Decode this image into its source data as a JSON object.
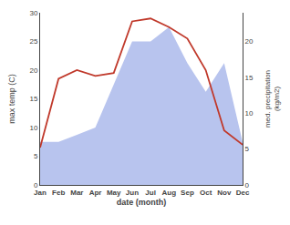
{
  "chart_data": {
    "type": "line",
    "categories": [
      "Jan",
      "Feb",
      "Mar",
      "Apr",
      "May",
      "Jun",
      "Jul",
      "Aug",
      "Sep",
      "Oct",
      "Nov",
      "Dec"
    ],
    "series": [
      {
        "type": "area",
        "axis": "y2",
        "color": "#b8c4ee",
        "values": [
          6.0,
          6.0,
          7.0,
          8.0,
          14.0,
          20.0,
          20.0,
          22.0,
          17.0,
          13.0,
          17.0,
          6.0
        ]
      },
      {
        "type": "line",
        "axis": "y",
        "color": "#c0392b",
        "values": [
          6.5,
          18.5,
          20.0,
          19.0,
          19.5,
          28.5,
          29.0,
          27.5,
          25.5,
          20.0,
          9.5,
          7.0
        ]
      }
    ],
    "x_label": "date (month)",
    "y_label": "max temp (C)",
    "y2_label": "med. precipitation\n(kg/m2)",
    "ylim": [
      0,
      30
    ],
    "yticks": [
      0,
      5,
      10,
      15,
      20,
      25,
      30
    ],
    "y2lim": [
      0,
      24
    ],
    "y2ticks": [
      0,
      5,
      10,
      15,
      20
    ],
    "grid": false
  }
}
